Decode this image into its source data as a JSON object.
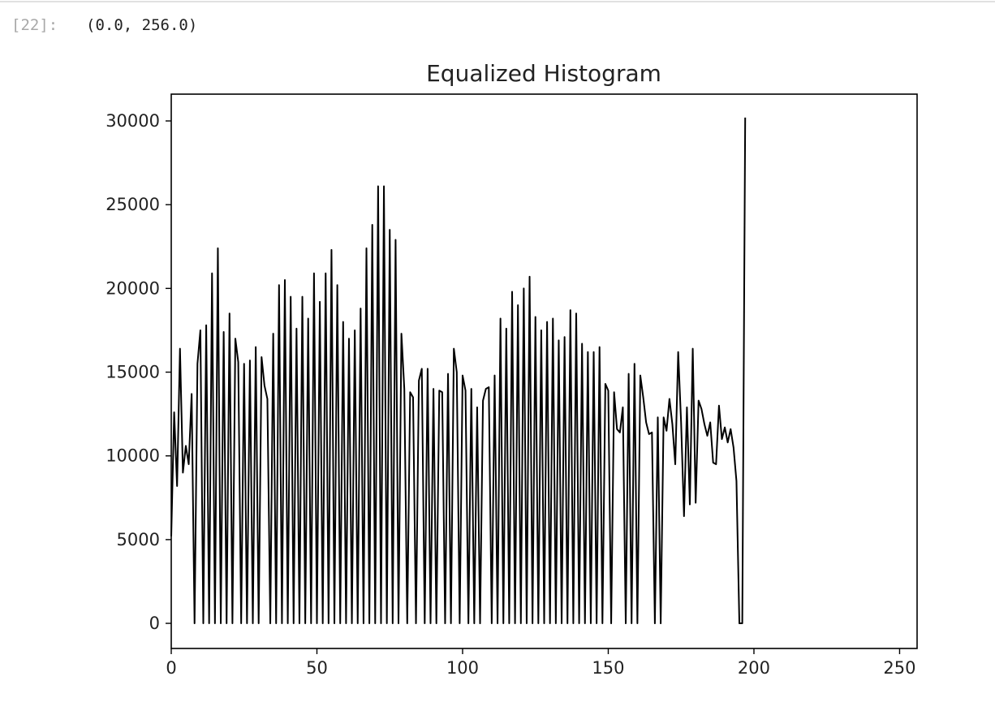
{
  "cell": {
    "prompt": "[22]:",
    "output": "(0.0, 256.0)"
  },
  "chart_data": {
    "type": "line",
    "title": "Equalized Histogram",
    "xlabel": "",
    "ylabel": "",
    "xlim": [
      0,
      256
    ],
    "ylim": [
      -1500,
      31600
    ],
    "xticks": [
      0,
      50,
      100,
      150,
      200,
      250
    ],
    "yticks": [
      0,
      5000,
      10000,
      15000,
      20000,
      25000,
      30000
    ],
    "line_color": "#000000",
    "grid": false,
    "legend": "none",
    "series": [
      {
        "values": [
          5200,
          12600,
          8200,
          16400,
          9000,
          10600,
          9500,
          13700,
          0,
          15500,
          17500,
          0,
          17800,
          0,
          20900,
          0,
          22400,
          0,
          17400,
          0,
          18500,
          0,
          17000,
          15600,
          0,
          15500,
          0,
          15700,
          0,
          16500,
          0,
          15900,
          14200,
          13400,
          0,
          17300,
          0,
          20200,
          0,
          20500,
          0,
          19500,
          0,
          17600,
          0,
          19500,
          0,
          18200,
          0,
          20900,
          0,
          19200,
          0,
          20900,
          0,
          22300,
          0,
          20200,
          0,
          18000,
          0,
          17000,
          0,
          17500,
          0,
          18800,
          0,
          22400,
          0,
          23800,
          0,
          26100,
          0,
          26100,
          0,
          23500,
          0,
          22900,
          0,
          17300,
          14000,
          0,
          13800,
          13500,
          0,
          14500,
          15200,
          0,
          15200,
          0,
          14000,
          0,
          13900,
          13800,
          0,
          14900,
          0,
          16400,
          15000,
          0,
          14800,
          13900,
          0,
          14000,
          0,
          12900,
          0,
          13300,
          14000,
          14100,
          0,
          14800,
          0,
          18200,
          0,
          17600,
          0,
          19800,
          0,
          19000,
          0,
          20000,
          0,
          20700,
          0,
          18300,
          0,
          17500,
          0,
          18000,
          0,
          18200,
          0,
          16900,
          0,
          17100,
          0,
          18700,
          0,
          18500,
          0,
          16700,
          0,
          16200,
          0,
          16200,
          0,
          16500,
          0,
          14300,
          13900,
          0,
          13800,
          11600,
          11400,
          12900,
          0,
          14900,
          0,
          15500,
          0,
          14800,
          13500,
          12000,
          11300,
          11400,
          0,
          12300,
          0,
          12300,
          11500,
          13400,
          11900,
          9500,
          16200,
          12000,
          6400,
          12900,
          7100,
          16400,
          7200,
          13300,
          12800,
          11900,
          11200,
          12000,
          9600,
          9500,
          13000,
          11000,
          11700,
          10800,
          11600,
          10500,
          8500,
          0,
          0,
          30200
        ]
      }
    ]
  }
}
